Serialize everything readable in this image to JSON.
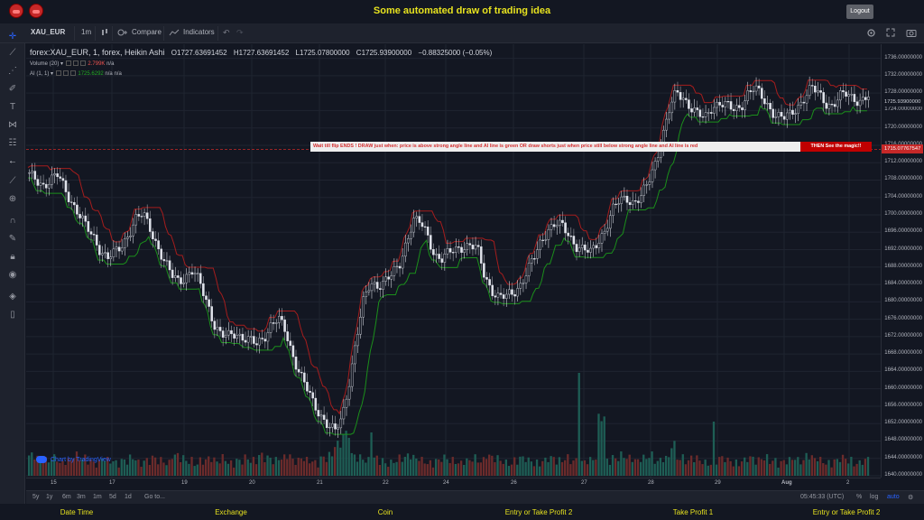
{
  "app": {
    "title": "Some automated draw of trading idea",
    "logout_label": "Logout"
  },
  "toolbar": {
    "symbol": "XAU_EUR",
    "interval": "1m",
    "compare_label": "Compare",
    "indicators_label": "Indicators"
  },
  "legend": {
    "series_title": "forex:XAU_EUR, 1, forex, Heikin Ashi",
    "open": "O1727.63691452",
    "high": "H1727.63691452",
    "low": "L1725.07800000",
    "close": "C1725.93900000",
    "change": "−0.88325000 (−0.05%)",
    "volume_label": "Volume (20)",
    "volume_value": "2.799K",
    "volume_na": "n/a",
    "ai_label": "AI (1, 1)",
    "ai_value": "1725.6292",
    "ai_na1": "n/a",
    "ai_na2": "n/a"
  },
  "banner": {
    "text": "Wait till flip ENDS !   DRAW just when:  price is above strong angle line and AI line is green        OR         draw shorts just when price still below strong angle line and AI line is red",
    "cta": "THEN See the magic!!"
  },
  "watermark": "Chart by TradingView",
  "price_axis": {
    "labels": [
      "1736.00000000",
      "1732.00000000",
      "1728.00000000",
      "1724.00000000",
      "1720.00000000",
      "1716.00000000",
      "1712.00000000",
      "1708.00000000",
      "1704.00000000",
      "1700.00000000",
      "1696.00000000",
      "1692.00000000",
      "1688.00000000",
      "1684.00000000",
      "1680.00000000",
      "1676.00000000",
      "1672.00000000",
      "1668.00000000",
      "1664.00000000",
      "1660.00000000",
      "1656.00000000",
      "1652.00000000",
      "1648.00000000",
      "1644.00000000",
      "1640.00000000"
    ],
    "current_price": "1725.93900000",
    "line_price": "1715.07767547"
  },
  "time_axis": {
    "labels": [
      "15",
      "17",
      "19",
      "20",
      "21",
      "22",
      "24",
      "26",
      "27",
      "28",
      "29",
      "Aug",
      "2"
    ]
  },
  "bottom_toolbar": {
    "ranges": [
      "5y",
      "1y",
      "6m",
      "3m",
      "1m",
      "5d",
      "1d"
    ],
    "goto_label": "Go to...",
    "clock": "05:45:33 (UTC)",
    "percent": "%",
    "log": "log",
    "auto": "auto"
  },
  "footer": {
    "labels": [
      "Date Time",
      "Exchange",
      "Coin",
      "Entry or Take Profit 2",
      "Take Profit 1",
      "Entry or Take Profit 2"
    ]
  },
  "colors": {
    "background": "#131722",
    "bull": "#26a69a",
    "bear": "#ef5350",
    "ai_line": "#22ab22",
    "upper_line": "#c62828",
    "accent": "#e7e21f"
  },
  "chart_data": {
    "type": "candlestick",
    "symbol": "XAU_EUR",
    "ylim": [
      1640,
      1738
    ],
    "x": [
      "15",
      "17",
      "19",
      "20",
      "21",
      "22",
      "24",
      "26",
      "27",
      "28",
      "29",
      "Aug",
      "2"
    ],
    "close_path": [
      1709,
      1708,
      1707,
      1708,
      1709,
      1706,
      1703,
      1700,
      1697,
      1695,
      1692,
      1690,
      1691,
      1693,
      1696,
      1699,
      1700,
      1697,
      1693,
      1689,
      1686,
      1685,
      1686,
      1687,
      1684,
      1680,
      1675,
      1672,
      1672,
      1673,
      1672,
      1671,
      1670,
      1672,
      1675,
      1676,
      1673,
      1668,
      1664,
      1660,
      1656,
      1654,
      1652,
      1650,
      1653,
      1662,
      1672,
      1680,
      1684,
      1684,
      1685,
      1686,
      1688,
      1694,
      1699,
      1698,
      1695,
      1691,
      1690,
      1691,
      1692,
      1693,
      1693,
      1692,
      1686,
      1683,
      1681,
      1681,
      1682,
      1684,
      1687,
      1690,
      1694,
      1697,
      1698,
      1697,
      1695,
      1693,
      1692,
      1691,
      1694,
      1697,
      1701,
      1703,
      1704,
      1703,
      1704,
      1707,
      1712,
      1718,
      1724,
      1728,
      1727,
      1725,
      1723,
      1722,
      1725,
      1726,
      1725,
      1724,
      1725,
      1728,
      1729,
      1727,
      1725,
      1723,
      1722,
      1723,
      1725,
      1727,
      1729,
      1728,
      1726,
      1725,
      1727,
      1728,
      1727,
      1726,
      1727
    ],
    "volume_path": [
      6,
      5,
      4,
      5,
      3,
      4,
      6,
      5,
      4,
      3,
      5,
      4,
      3,
      4,
      5,
      3,
      4,
      5,
      4,
      3,
      6,
      5,
      4,
      3,
      4,
      5,
      4,
      5,
      3,
      4,
      5,
      4,
      6,
      5,
      4,
      5,
      6,
      4,
      5,
      4,
      3,
      5,
      6,
      10,
      14,
      6,
      5,
      4,
      5,
      4,
      3,
      4,
      5,
      6,
      5,
      4,
      3,
      4,
      5,
      4,
      3,
      4,
      5,
      4,
      6,
      5,
      4,
      3,
      4,
      5,
      4,
      3,
      4,
      5,
      4,
      5,
      4,
      3,
      4,
      5,
      20,
      4,
      5,
      6,
      5,
      4,
      5,
      6,
      4,
      5,
      10,
      5,
      4,
      5,
      4,
      3,
      4,
      5,
      4,
      3,
      4,
      5,
      4,
      5,
      4,
      3,
      4,
      5,
      4,
      6,
      5,
      4,
      3,
      4,
      5,
      4,
      3,
      4,
      5
    ]
  }
}
